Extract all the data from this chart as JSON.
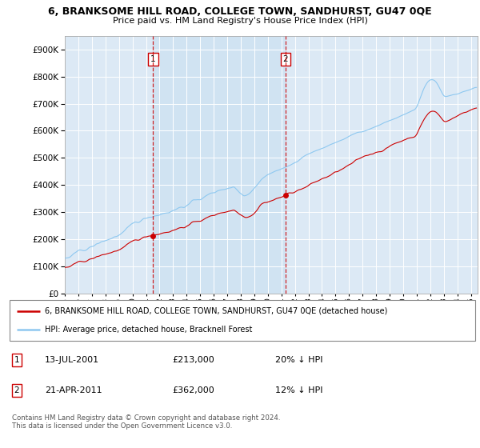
{
  "title1": "6, BRANKSOME HILL ROAD, COLLEGE TOWN, SANDHURST, GU47 0QE",
  "title2": "Price paid vs. HM Land Registry's House Price Index (HPI)",
  "ytick_values": [
    0,
    100000,
    200000,
    300000,
    400000,
    500000,
    600000,
    700000,
    800000,
    900000
  ],
  "ylim": [
    0,
    950000
  ],
  "xlim_start": 1995.0,
  "xlim_end": 2025.5,
  "plot_bg": "#dce9f5",
  "shade_color": "#c8dff0",
  "grid_color": "#ffffff",
  "line_color_hpi": "#8ec8f0",
  "line_color_price": "#cc0000",
  "sale1_x": 2001.53,
  "sale1_y": 213000,
  "sale2_x": 2011.31,
  "sale2_y": 362000,
  "legend_label1": "6, BRANKSOME HILL ROAD, COLLEGE TOWN, SANDHURST, GU47 0QE (detached house)",
  "legend_label2": "HPI: Average price, detached house, Bracknell Forest",
  "footnote": "Contains HM Land Registry data © Crown copyright and database right 2024.\nThis data is licensed under the Open Government Licence v3.0."
}
